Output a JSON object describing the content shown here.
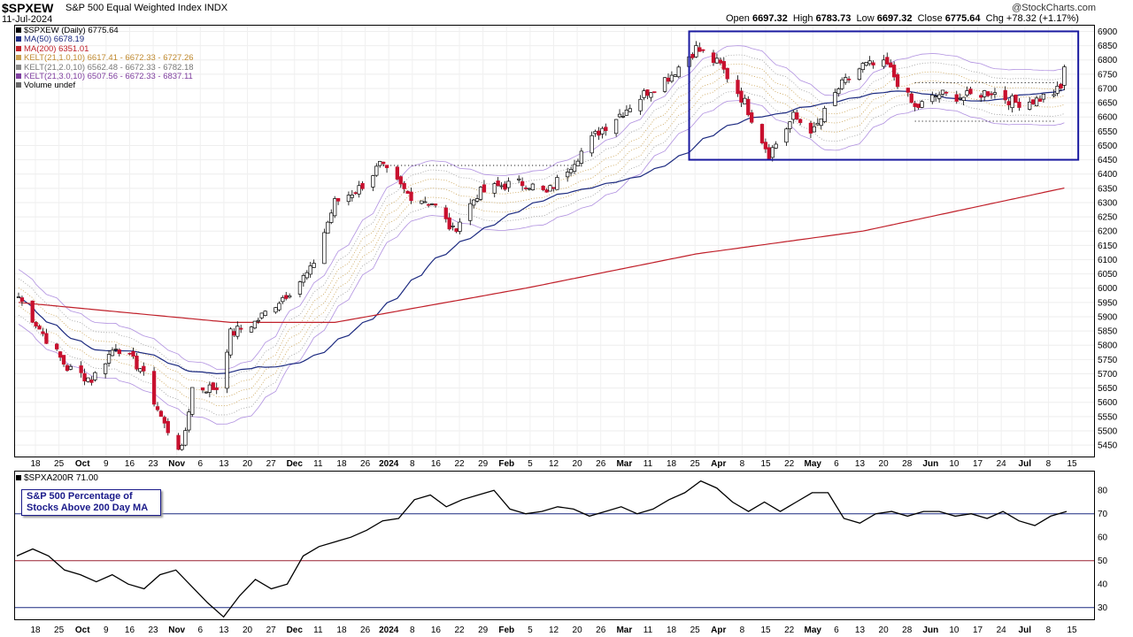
{
  "header": {
    "symbol": "$SPXEW",
    "name": "S&P 500 Equal Weighted Index INDX",
    "date": "11-Jul-2024",
    "brand": "@StockCharts.com",
    "open_label": "Open",
    "open": "6697.32",
    "high_label": "High",
    "high": "6783.73",
    "low_label": "Low",
    "low": "6697.32",
    "close_label": "Close",
    "close": "6775.64",
    "chg_label": "Chg",
    "chg": "+78.32 (+1.17%)"
  },
  "legend": [
    {
      "text": "$SPXEW (Daily) 6775.64",
      "color": "#000000"
    },
    {
      "text": "MA(50) 6678.19",
      "color": "#1c2a80"
    },
    {
      "text": "MA(200) 6351.01",
      "color": "#c0202a"
    },
    {
      "text": "KELT(21,1.0,10) 6617.41 - 6672.33 - 6727.26",
      "color": "#c8a050"
    },
    {
      "text": "KELT(21,2.0,10) 6562.48 - 6672.33 - 6782.18",
      "color": "#888888"
    },
    {
      "text": "KELT(21,3.0,10) 6507.56 - 6672.33 - 6837.11",
      "color": "#8040a0"
    },
    {
      "text": "Volume undef",
      "color": "#000000"
    }
  ],
  "indicator": {
    "label": "$SPXA200R 71.00",
    "annotation_line1": "S&P 500 Percentage of",
    "annotation_line2": "Stocks Above 200 Day MA"
  },
  "chart_data": [
    {
      "type": "candlestick",
      "title": "$SPXEW (Daily) 6775.64",
      "y_ticks": [
        5450,
        5500,
        5550,
        5600,
        5650,
        5700,
        5750,
        5800,
        5850,
        5900,
        5950,
        6000,
        6050,
        6100,
        6150,
        6200,
        6250,
        6300,
        6350,
        6400,
        6450,
        6500,
        6550,
        6600,
        6650,
        6700,
        6750,
        6800,
        6850,
        6900
      ],
      "ylim": [
        5410,
        6920
      ],
      "x_ticks": [
        "18",
        "25",
        "Oct",
        "9",
        "16",
        "23",
        "Nov",
        "6",
        "13",
        "20",
        "27",
        "Dec",
        "11",
        "18",
        "26",
        "2024",
        "8",
        "16",
        "22",
        "29",
        "Feb",
        "5",
        "12",
        "20",
        "26",
        "Mar",
        "11",
        "18",
        "25",
        "Apr",
        "8",
        "15",
        "22",
        "May",
        "6",
        "13",
        "20",
        "28",
        "Jun",
        "10",
        "17",
        "24",
        "Jul",
        "8",
        "15"
      ],
      "approx_path_close": [
        [
          "2023-09-14",
          5970
        ],
        [
          "2023-09-21",
          5840
        ],
        [
          "2023-09-28",
          5720
        ],
        [
          "2023-10-05",
          5680
        ],
        [
          "2023-10-12",
          5800
        ],
        [
          "2023-10-19",
          5720
        ],
        [
          "2023-10-26",
          5520
        ],
        [
          "2023-10-31",
          5430
        ],
        [
          "2023-11-03",
          5650
        ],
        [
          "2023-11-10",
          5650
        ],
        [
          "2023-11-14",
          5840
        ],
        [
          "2023-11-21",
          5880
        ],
        [
          "2023-11-30",
          5980
        ],
        [
          "2023-12-07",
          6060
        ],
        [
          "2023-12-14",
          6300
        ],
        [
          "2023-12-21",
          6350
        ],
        [
          "2023-12-27",
          6430
        ],
        [
          "2024-01-04",
          6330
        ],
        [
          "2024-01-11",
          6300
        ],
        [
          "2024-01-17",
          6200
        ],
        [
          "2024-01-24",
          6330
        ],
        [
          "2024-01-31",
          6360
        ],
        [
          "2024-02-07",
          6370
        ],
        [
          "2024-02-13",
          6330
        ],
        [
          "2024-02-21",
          6450
        ],
        [
          "2024-02-28",
          6550
        ],
        [
          "2024-03-06",
          6620
        ],
        [
          "2024-03-13",
          6690
        ],
        [
          "2024-03-20",
          6750
        ],
        [
          "2024-03-27",
          6840
        ],
        [
          "2024-04-03",
          6780
        ],
        [
          "2024-04-10",
          6650
        ],
        [
          "2024-04-17",
          6470
        ],
        [
          "2024-04-24",
          6600
        ],
        [
          "2024-04-30",
          6550
        ],
        [
          "2024-05-07",
          6700
        ],
        [
          "2024-05-14",
          6780
        ],
        [
          "2024-05-21",
          6780
        ],
        [
          "2024-05-29",
          6630
        ],
        [
          "2024-06-05",
          6680
        ],
        [
          "2024-06-12",
          6670
        ],
        [
          "2024-06-20",
          6690
        ],
        [
          "2024-06-27",
          6650
        ],
        [
          "2024-07-03",
          6660
        ],
        [
          "2024-07-10",
          6697
        ],
        [
          "2024-07-11",
          6775.64
        ]
      ],
      "ma200_approx": [
        [
          "2023-09-14",
          5950
        ],
        [
          "2023-11-14",
          5880
        ],
        [
          "2023-12-14",
          5880
        ],
        [
          "2024-02-07",
          6000
        ],
        [
          "2024-03-27",
          6120
        ],
        [
          "2024-05-14",
          6200
        ],
        [
          "2024-07-11",
          6351
        ]
      ],
      "boxes": [
        {
          "label": "",
          "y_range": [
            6450,
            6900
          ]
        }
      ],
      "support_resistance_levels": [
        6430,
        6720,
        6585
      ]
    },
    {
      "type": "line",
      "title": "$SPXA200R 71.00",
      "y_ticks": [
        30,
        40,
        50,
        60,
        70,
        80
      ],
      "ylim": [
        25,
        88
      ],
      "reference_lines": [
        {
          "value": 70,
          "color": "#1c2a80"
        },
        {
          "value": 50,
          "color": "#9a2030"
        },
        {
          "value": 30,
          "color": "#1c2a80"
        }
      ],
      "approx_series": [
        52,
        55,
        52,
        46,
        44,
        41,
        44,
        40,
        38,
        44,
        46,
        39,
        32,
        26,
        35,
        42,
        38,
        40,
        52,
        56,
        58,
        60,
        63,
        67,
        68,
        76,
        78,
        73,
        76,
        78,
        80,
        72,
        70,
        71,
        73,
        72,
        69,
        71,
        73,
        70,
        72,
        76,
        79,
        84,
        81,
        75,
        71,
        75,
        71,
        75,
        79,
        79,
        68,
        66,
        70,
        71,
        69,
        71,
        71,
        69,
        70,
        68,
        71,
        67,
        65,
        69,
        71
      ]
    }
  ]
}
